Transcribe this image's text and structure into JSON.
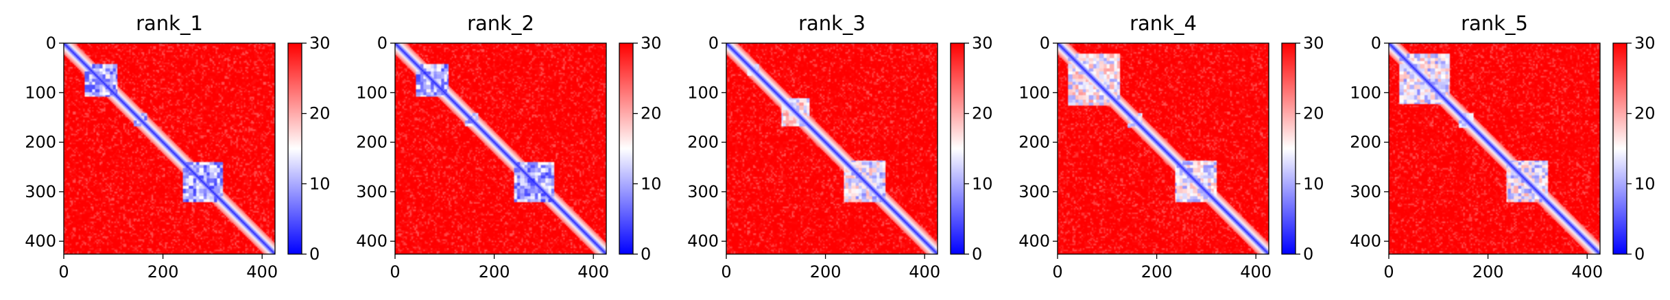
{
  "chart_data": {
    "type": "heatmap",
    "description_axes": {
      "x_ticks": [
        0,
        200,
        400
      ],
      "y_ticks": [
        0,
        100,
        200,
        300,
        400
      ],
      "xlim": [
        0,
        426
      ],
      "ylim": [
        426,
        0
      ],
      "colorbar_ticks": [
        0,
        10,
        20,
        30
      ],
      "color_range": [
        0,
        30
      ],
      "colormap": [
        "#0000ff",
        "#ffffff",
        "#ff0000"
      ]
    },
    "panels": [
      {
        "title": "rank_1",
        "domains": [
          [
            40,
            105,
            4
          ],
          [
            140,
            165,
            6
          ],
          [
            240,
            320,
            4
          ]
        ]
      },
      {
        "title": "rank_2",
        "domains": [
          [
            40,
            105,
            4
          ],
          [
            140,
            165,
            6
          ],
          [
            240,
            320,
            4
          ]
        ]
      },
      {
        "title": "rank_3",
        "domains": [
          [
            40,
            65,
            8
          ],
          [
            110,
            165,
            10
          ],
          [
            235,
            320,
            8
          ]
        ]
      },
      {
        "title": "rank_4",
        "domains": [
          [
            20,
            125,
            9
          ],
          [
            140,
            170,
            9
          ],
          [
            235,
            320,
            8
          ]
        ]
      },
      {
        "title": "rank_5",
        "domains": [
          [
            20,
            120,
            8
          ],
          [
            140,
            170,
            9
          ],
          [
            235,
            320,
            8
          ]
        ]
      }
    ]
  }
}
